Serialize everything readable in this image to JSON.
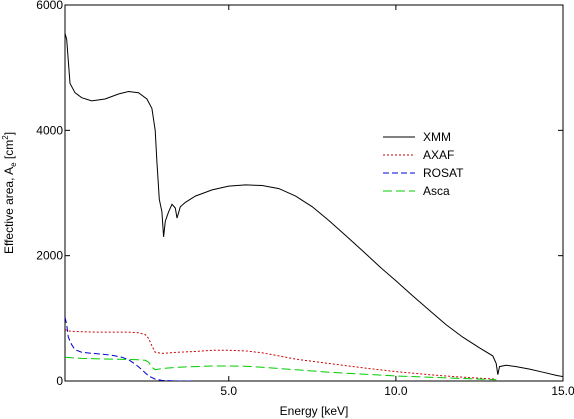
{
  "chart_data": {
    "type": "line",
    "title": "",
    "xlabel": "Energy [keV]",
    "ylabel_text": "Effective area, A",
    "ylabel_sub": "e",
    "ylabel_unit_open": " [cm",
    "ylabel_sup": "2",
    "ylabel_unit_close": "]",
    "xlim": [
      0.1,
      15.0
    ],
    "ylim": [
      0,
      6000
    ],
    "x_ticks": [
      5.0,
      10.0,
      15.0
    ],
    "x_tick_labels": [
      "5.0",
      "10.0",
      "15.0"
    ],
    "y_ticks": [
      0,
      2000,
      4000,
      6000
    ],
    "y_tick_labels": [
      "0",
      "2000",
      "4000",
      "6000"
    ],
    "grid": false,
    "legend_position": "right-center",
    "series": [
      {
        "name": "XMM",
        "color": "#000000",
        "dash": "solid",
        "points": [
          [
            0.1,
            5550
          ],
          [
            0.15,
            5450
          ],
          [
            0.25,
            4750
          ],
          [
            0.4,
            4600
          ],
          [
            0.6,
            4520
          ],
          [
            0.9,
            4470
          ],
          [
            1.3,
            4500
          ],
          [
            1.7,
            4580
          ],
          [
            2.0,
            4620
          ],
          [
            2.3,
            4600
          ],
          [
            2.55,
            4500
          ],
          [
            2.7,
            4350
          ],
          [
            2.8,
            4000
          ],
          [
            2.85,
            3500
          ],
          [
            2.92,
            2900
          ],
          [
            3.0,
            2700
          ],
          [
            3.05,
            2300
          ],
          [
            3.1,
            2550
          ],
          [
            3.2,
            2700
          ],
          [
            3.3,
            2820
          ],
          [
            3.4,
            2760
          ],
          [
            3.45,
            2600
          ],
          [
            3.55,
            2780
          ],
          [
            3.7,
            2850
          ],
          [
            4.0,
            2950
          ],
          [
            4.5,
            3050
          ],
          [
            5.0,
            3110
          ],
          [
            5.5,
            3130
          ],
          [
            6.0,
            3120
          ],
          [
            6.5,
            3070
          ],
          [
            7.0,
            2950
          ],
          [
            7.5,
            2780
          ],
          [
            8.0,
            2560
          ],
          [
            8.5,
            2320
          ],
          [
            9.0,
            2080
          ],
          [
            9.5,
            1830
          ],
          [
            10.0,
            1600
          ],
          [
            10.5,
            1360
          ],
          [
            11.0,
            1130
          ],
          [
            11.5,
            900
          ],
          [
            12.0,
            700
          ],
          [
            12.5,
            530
          ],
          [
            12.9,
            400
          ],
          [
            13.0,
            280
          ],
          [
            13.05,
            100
          ],
          [
            13.1,
            230
          ],
          [
            13.3,
            250
          ],
          [
            13.6,
            230
          ],
          [
            14.0,
            190
          ],
          [
            14.4,
            140
          ],
          [
            14.8,
            90
          ],
          [
            15.2,
            50
          ],
          [
            15.6,
            35
          ],
          [
            16.0,
            30
          ]
        ]
      },
      {
        "name": "AXAF",
        "color": "#cc0000",
        "dash": "2,2",
        "points": [
          [
            0.1,
            820
          ],
          [
            0.2,
            800
          ],
          [
            0.4,
            790
          ],
          [
            1.0,
            780
          ],
          [
            1.5,
            780
          ],
          [
            2.0,
            780
          ],
          [
            2.3,
            770
          ],
          [
            2.5,
            740
          ],
          [
            2.6,
            680
          ],
          [
            2.7,
            560
          ],
          [
            2.8,
            460
          ],
          [
            3.0,
            440
          ],
          [
            3.5,
            460
          ],
          [
            4.0,
            470
          ],
          [
            4.5,
            490
          ],
          [
            5.0,
            490
          ],
          [
            5.5,
            480
          ],
          [
            6.0,
            450
          ],
          [
            6.5,
            400
          ],
          [
            7.0,
            350
          ],
          [
            8.0,
            280
          ],
          [
            9.0,
            210
          ],
          [
            10.0,
            150
          ],
          [
            11.0,
            100
          ],
          [
            11.5,
            80
          ],
          [
            12.0,
            60
          ],
          [
            12.5,
            45
          ],
          [
            13.0,
            30
          ]
        ]
      },
      {
        "name": "ROSAT",
        "color": "#0000cc",
        "dash": "6,3",
        "points": [
          [
            0.1,
            1020
          ],
          [
            0.15,
            900
          ],
          [
            0.2,
            700
          ],
          [
            0.3,
            580
          ],
          [
            0.4,
            500
          ],
          [
            0.6,
            460
          ],
          [
            0.9,
            440
          ],
          [
            1.2,
            430
          ],
          [
            1.5,
            410
          ],
          [
            1.8,
            380
          ],
          [
            2.0,
            340
          ],
          [
            2.2,
            270
          ],
          [
            2.4,
            180
          ],
          [
            2.6,
            80
          ],
          [
            2.8,
            30
          ],
          [
            3.0,
            10
          ],
          [
            3.5,
            0
          ],
          [
            4.0,
            0
          ]
        ]
      },
      {
        "name": "Asca",
        "color": "#00cc00",
        "dash": "9,4",
        "points": [
          [
            0.1,
            380
          ],
          [
            0.3,
            370
          ],
          [
            0.6,
            360
          ],
          [
            1.0,
            355
          ],
          [
            1.5,
            350
          ],
          [
            2.0,
            345
          ],
          [
            2.3,
            340
          ],
          [
            2.5,
            330
          ],
          [
            2.6,
            300
          ],
          [
            2.7,
            220
          ],
          [
            2.8,
            180
          ],
          [
            3.0,
            200
          ],
          [
            3.5,
            220
          ],
          [
            4.0,
            230
          ],
          [
            4.5,
            240
          ],
          [
            5.0,
            240
          ],
          [
            5.5,
            235
          ],
          [
            6.0,
            220
          ],
          [
            6.5,
            200
          ],
          [
            7.0,
            180
          ],
          [
            8.0,
            140
          ],
          [
            9.0,
            110
          ],
          [
            10.0,
            80
          ],
          [
            11.0,
            60
          ],
          [
            12.0,
            40
          ],
          [
            13.0,
            20
          ]
        ]
      }
    ]
  }
}
